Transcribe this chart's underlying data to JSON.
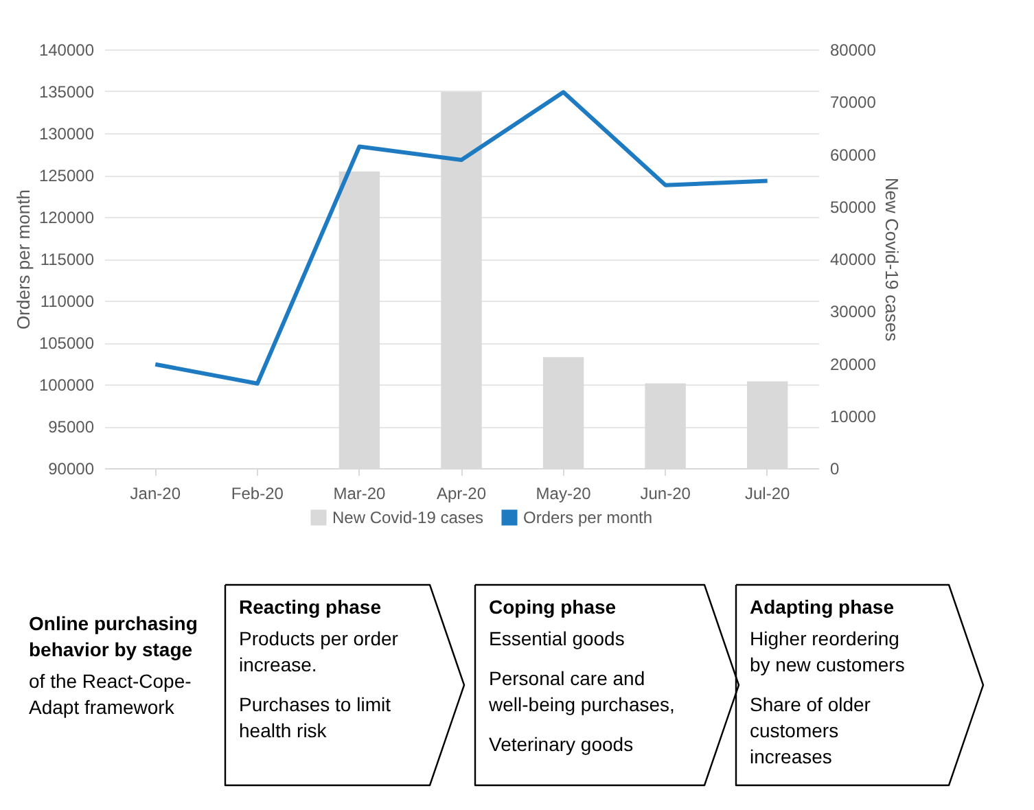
{
  "chart_data": {
    "type": "bar",
    "categories": [
      "Jan-20",
      "Feb-20",
      "Mar-20",
      "Apr-20",
      "May-20",
      "Jun-20",
      "Jul-20"
    ],
    "series": [
      {
        "name": "New Covid-19 cases",
        "axis": "y2",
        "color": "#d9d9d9",
        "values": [
          null,
          null,
          56700,
          71900,
          21200,
          16200,
          16600
        ]
      },
      {
        "name": "Orders per month",
        "type": "line",
        "color": "#1f7bc1",
        "values": [
          102400,
          100100,
          128400,
          126800,
          134900,
          123800,
          124300
        ]
      }
    ],
    "ylabel": "Orders per month",
    "y2label": "New Covid-19 cases",
    "ylim": [
      90000,
      140000
    ],
    "yticks": [
      90000,
      95000,
      100000,
      105000,
      110000,
      115000,
      120000,
      125000,
      130000,
      135000,
      140000
    ],
    "y2lim": [
      0,
      80000
    ],
    "y2ticks": [
      0,
      10000,
      20000,
      30000,
      40000,
      50000,
      60000,
      70000,
      80000
    ],
    "grid": "y",
    "legend": "bottom",
    "annotations": [
      "Online purchasing\nbehavior by stage",
      "of the React-Cope-\nAdapt framework",
      "Reacting phase",
      "Products per order\nincrease.",
      "Purchases to limit\nhealth risk",
      "Coping phase",
      "Essential goods",
      "Personal care and\nwell-being purchases,",
      "Veterinary goods",
      "Adapting phase",
      "Higher reordering\nby new customers",
      "Share of older\ncustomers\nincreases"
    ]
  }
}
